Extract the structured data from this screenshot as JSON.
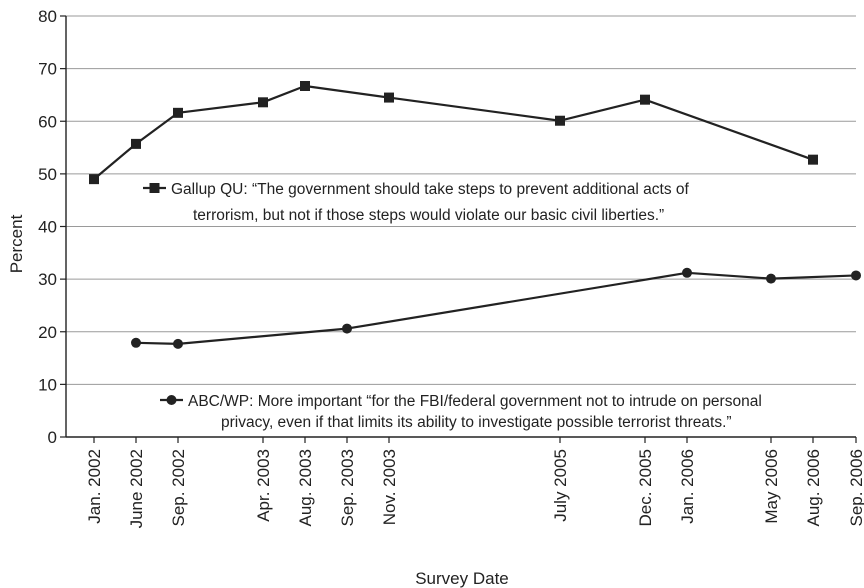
{
  "chart_data": {
    "type": "line",
    "xlabel": "Survey Date",
    "ylabel": "Percent",
    "ylim": [
      0,
      80
    ],
    "yticks": [
      "0",
      "10",
      "20",
      "30",
      "40",
      "50",
      "60",
      "70",
      "80"
    ],
    "grid": "horizontal",
    "categories": [
      "Jan. 2002",
      "June 2002",
      "Sep. 2002",
      "Apr. 2003",
      "Aug. 2003",
      "Sep. 2003",
      "Nov. 2003",
      "July 2005",
      "Dec. 2005",
      "Jan. 2006",
      "May 2006",
      "Aug. 2006",
      "Sep. 2006"
    ],
    "series": [
      {
        "name": "Gallup QU: “The government should take steps to prevent additional acts of terrorism, but not if those steps would violate our basic civil liberties.”",
        "legend_lines": [
          "Gallup QU: “The government should take steps to prevent additional acts of",
          "terrorism, but not if those steps would violate our basic civil liberties.”"
        ],
        "marker": "square",
        "color": "#222222",
        "x": [
          "Jan. 2002",
          "June 2002",
          "Sep. 2002",
          "Apr. 2003",
          "Aug. 2003",
          "Nov. 2003",
          "July 2005",
          "Dec. 2005",
          "Aug. 2006"
        ],
        "values": [
          49,
          55.7,
          61.6,
          63.6,
          66.7,
          64.5,
          60.1,
          64.1,
          52.7
        ]
      },
      {
        "name": "ABC/WP: More important “for the FBI/federal government not to intrude on personal privacy, even if that limits its ability to investigate possible terrorist threats.”",
        "legend_lines": [
          "ABC/WP: More important “for the FBI/federal government not to intrude on personal",
          "privacy, even if that limits its ability to investigate possible terrorist threats.”"
        ],
        "marker": "circle",
        "color": "#222222",
        "x": [
          "June 2002",
          "Sep. 2002",
          "Sep. 2003",
          "Jan. 2006",
          "May 2006",
          "Sep. 2006"
        ],
        "values": [
          17.9,
          17.7,
          20.6,
          31.2,
          30.1,
          30.7
        ]
      }
    ]
  }
}
